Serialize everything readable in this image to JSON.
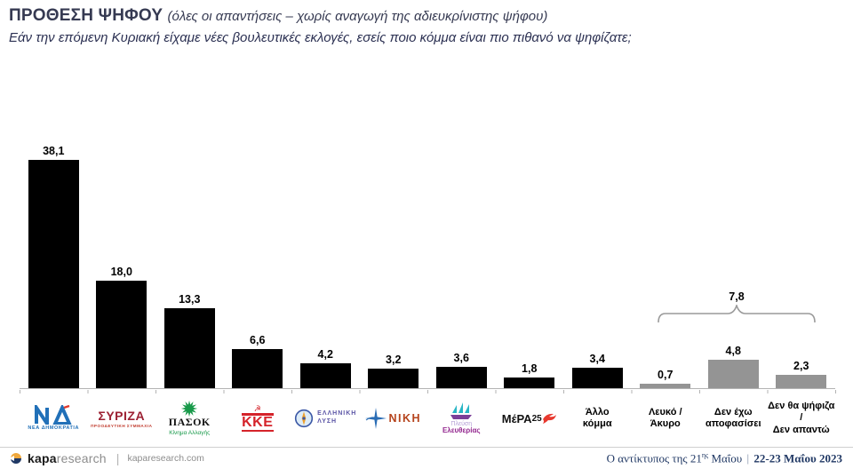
{
  "header": {
    "title": "ΠΡΟΘΕΣΗ ΨΗΦΟΥ",
    "title_note": "(όλες οι απαντήσεις – χωρίς αναγωγή της αδιευκρίνιστης ψήφου)",
    "subtitle": "Εάν την επόμενη Κυριακή είχαμε νέες βουλευτικές εκλογές, εσείς ποιο κόμμα είναι πιο πιθανό να ψηφίζατε;"
  },
  "chart_data": {
    "type": "bar",
    "title": "ΠΡΟΘΕΣΗ ΨΗΦΟΥ (όλες οι απαντήσεις – χωρίς αναγωγή της αδιευκρίνιστης ψήφου)",
    "categories": [
      "ΝΕΑ ΔΗΜΟΚΡΑΤΙΑ",
      "ΣΥΡΙΖΑ ΠΡΟΟΔΕΥΤΙΚΗ ΣΥΜΜΑΧΙΑ",
      "ΠΑΣΟΚ Κίνημα Αλλαγής",
      "ΚΚΕ",
      "ΕΛΛΗΝΙΚΗ ΛΥΣΗ",
      "ΝΙΚΗ",
      "Πλεύση Ελευθερίας",
      "ΜέΡΑ25",
      "Άλλο κόμμα",
      "Λευκό / Άκυρο",
      "Δεν έχω αποφασίσει",
      "Δεν θα ψήφιζα / Δεν απαντώ"
    ],
    "values": [
      38.1,
      18.0,
      13.3,
      6.6,
      4.2,
      3.2,
      3.6,
      1.8,
      3.4,
      0.7,
      4.8,
      2.3
    ],
    "value_labels": [
      "38,1",
      "18,0",
      "13,3",
      "6,6",
      "4,2",
      "3,2",
      "3,6",
      "1,8",
      "3,4",
      "0,7",
      "4,8",
      "2,3"
    ],
    "bar_colors": [
      "#000000",
      "#000000",
      "#000000",
      "#000000",
      "#000000",
      "#000000",
      "#000000",
      "#000000",
      "#000000",
      "#949494",
      "#949494",
      "#949494"
    ],
    "group_annotation": {
      "label": "7,8",
      "covers": [
        "Λευκό / Άκυρο",
        "Δεν έχω αποφασίσει",
        "Δεν θα ψήφιζα / Δεν απαντώ"
      ],
      "value": 7.8
    },
    "ylim": [
      0,
      40
    ],
    "grid": false,
    "legend": false,
    "xlabel": "",
    "ylabel": ""
  },
  "parties": [
    {
      "id": "nea-dimokratia",
      "caption": "ΝΕΑ ΔΗΜΟΚΡΑΤΙΑ"
    },
    {
      "id": "syriza",
      "name": "ΣΥΡΙΖΑ",
      "caption": "ΠΡΟΟΔΕΥΤΙΚΗ ΣΥΜΜΑΧΙΑ"
    },
    {
      "id": "pasok",
      "name": "ΠΑΣΟΚ",
      "caption": "Κίνημα Αλλαγής"
    },
    {
      "id": "kke",
      "name": "ΚΚΕ"
    },
    {
      "id": "elliniki-lysi",
      "line1": "ΕΛΛΗΝΙΚΗ",
      "line2": "ΛΥΣΗ"
    },
    {
      "id": "niki",
      "name": "ΝΙΚΗ"
    },
    {
      "id": "plefsi-eleftherias",
      "line1": "Πλεύση",
      "line2": "Ελευθερίας"
    },
    {
      "id": "mera25",
      "name": "ΜέΡΑ",
      "suffix": "25"
    },
    {
      "id": "allo-komma",
      "line1": "Άλλο",
      "line2": "κόμμα"
    },
    {
      "id": "lefko-akyro",
      "line1": "Λευκό /",
      "line2": "Άκυρο"
    },
    {
      "id": "den-exo-apofasisei",
      "line1": "Δεν έχω",
      "line2": "αποφασίσει"
    },
    {
      "id": "den-tha-psifiza",
      "line1": "Δεν θα ψήφιζα /",
      "line2": "Δεν απαντώ"
    }
  ],
  "colors": {
    "bar_black": "#000000",
    "bar_grey": "#949494",
    "title_navy": "#363a52",
    "footer_navy": "#203864",
    "axis_grey": "#b3b3b3"
  },
  "footer": {
    "brand_bold": "kapa",
    "brand_light": "research",
    "separator": "|",
    "site": "kaparesearch.com",
    "right_pre": "Ο αντίκτυπος της 21",
    "right_sup": "ης",
    "right_mid": " Μαΐου ",
    "right_sep": "|",
    "right_bold": " 22-23 Μαΐου 2023"
  }
}
